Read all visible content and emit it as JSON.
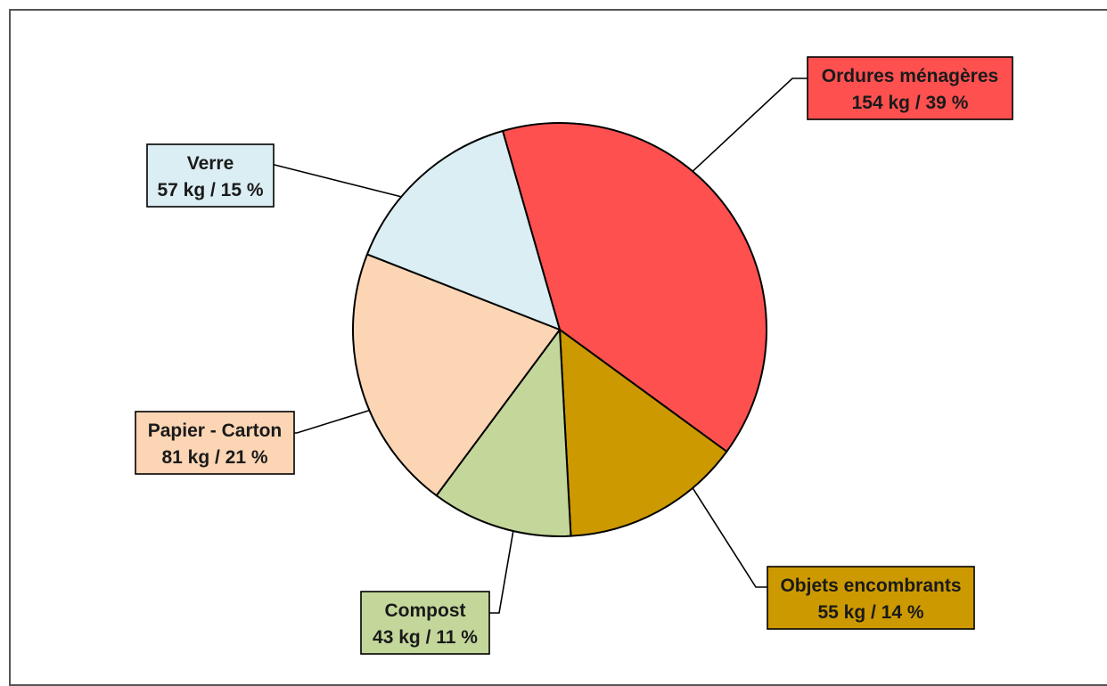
{
  "chart_data": {
    "type": "pie",
    "title": "",
    "unit": "kg",
    "slices": [
      {
        "name": "Ordures ménagères",
        "value": 154,
        "percent": 39,
        "label_line1": "Ordures ménagères",
        "label_line2": "154 kg / 39 %",
        "color": "#FF5050"
      },
      {
        "name": "Objets encombrants",
        "value": 55,
        "percent": 14,
        "label_line1": "Objets encombrants",
        "label_line2": "55 kg / 14 %",
        "color": "#CC9900"
      },
      {
        "name": "Compost",
        "value": 43,
        "percent": 11,
        "label_line1": "Compost",
        "label_line2": "43 kg / 11 %",
        "color": "#C4D79B"
      },
      {
        "name": "Papier - Carton",
        "value": 81,
        "percent": 21,
        "label_line1": "Papier - Carton",
        "label_line2": "81 kg  / 21 %",
        "color": "#FCD5B4"
      },
      {
        "name": "Verre",
        "value": 57,
        "percent": 15,
        "label_line1": "Verre",
        "label_line2": "57 kg / 15 %",
        "color": "#DAEEF3"
      }
    ],
    "legend": "none",
    "labels": "callout-boxes"
  }
}
